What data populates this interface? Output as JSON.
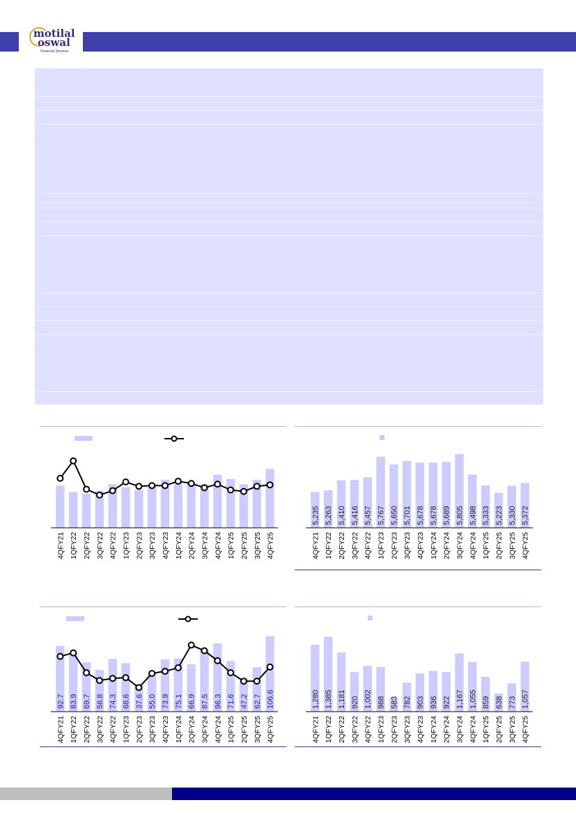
{
  "header": {
    "logo_text": [
      "motilal",
      "oswal"
    ],
    "logo_sub": "Financial Services"
  },
  "colors": {
    "bar": "#ccccff",
    "line": "#000000",
    "label": "#1a1aa6",
    "header": "#3f3fae",
    "footer": "#00008b"
  },
  "chart_data": [
    {
      "type": "bar+line",
      "categories": [
        "4QFY21",
        "1QFY22",
        "2QFY22",
        "3QFY22",
        "4QFY22",
        "1QFY23",
        "2QFY23",
        "3QFY23",
        "4QFY23",
        "1QFY24",
        "2QFY24",
        "3QFY24",
        "4QFY24",
        "1QFY25",
        "2QFY25",
        "3QFY25",
        "4QFY25"
      ],
      "bars": [
        58,
        49,
        47,
        51,
        60,
        56,
        52,
        57,
        66,
        64,
        62,
        60,
        73,
        67,
        60,
        66,
        81
      ],
      "line": [
        68,
        92,
        53,
        45,
        51,
        63,
        57,
        58,
        58,
        64,
        61,
        55,
        60,
        52,
        50,
        57,
        59
      ],
      "show_labels": false,
      "ymax": 110
    },
    {
      "type": "bar",
      "categories": [
        "4QFY21",
        "1QFY22",
        "2QFY22",
        "3QFY22",
        "4QFY22",
        "1QFY23",
        "2QFY23",
        "3QFY23",
        "4QFY23",
        "1QFY24",
        "2QFY24",
        "3QFY24",
        "4QFY24",
        "1QFY25",
        "2QFY25",
        "3QFY25",
        "4QFY25"
      ],
      "bars": [
        5235,
        5263,
        5410,
        5416,
        5457,
        5767,
        5650,
        5701,
        5678,
        5678,
        5689,
        5805,
        5498,
        5333,
        5223,
        5330,
        5372
      ],
      "labels": [
        "5,235",
        "5,263",
        "5,410",
        "5,416",
        "5,457",
        "5,767",
        "5,650",
        "5,701",
        "5,678",
        "5,678",
        "5,689",
        "5,805",
        "5,498",
        "5,333",
        "5,223",
        "5,330",
        "5,372"
      ],
      "show_labels": true,
      "ymin": 4700,
      "ymax": 5900
    },
    {
      "type": "bar+line",
      "categories": [
        "4QFY21",
        "1QFY22",
        "2QFY22",
        "3QFY22",
        "4QFY22",
        "1QFY23",
        "2QFY23",
        "3QFY23",
        "4QFY23",
        "1QFY24",
        "2QFY24",
        "3QFY24",
        "4QFY24",
        "1QFY25",
        "2QFY25",
        "3QFY25",
        "4QFY25"
      ],
      "bars": [
        92.7,
        83.9,
        69.7,
        58.8,
        74.3,
        68.6,
        37.6,
        55.0,
        73.9,
        75.1,
        66.9,
        87.5,
        96.3,
        71.6,
        47.2,
        62.7,
        106.6
      ],
      "labels": [
        "92.7",
        "83.9",
        "69.7",
        "58.8",
        "74.3",
        "68.6",
        "37.6",
        "55.0",
        "73.9",
        "75.1",
        "66.9",
        "87.5",
        "96.3",
        "71.6",
        "47.2",
        "62.7",
        "106.6"
      ],
      "line": [
        78,
        83,
        55,
        44,
        47,
        48,
        34,
        54,
        57,
        62,
        94,
        86,
        72,
        55,
        43,
        43,
        63
      ],
      "show_labels": true,
      "ymax": 118
    },
    {
      "type": "bar",
      "categories": [
        "4QFY21",
        "1QFY22",
        "2QFY22",
        "3QFY22",
        "4QFY22",
        "1QFY23",
        "2QFY23",
        "3QFY23",
        "4QFY23",
        "1QFY24",
        "2QFY24",
        "3QFY24",
        "4QFY24",
        "1QFY25",
        "2QFY25",
        "3QFY25",
        "4QFY25"
      ],
      "bars": [
        1280,
        1385,
        1181,
        920,
        1002,
        988,
        583,
        782,
        903,
        936,
        922,
        1167,
        1055,
        859,
        638,
        773,
        1057
      ],
      "labels": [
        "1,280",
        "1,385",
        "1,181",
        "920",
        "1,002",
        "988",
        "583",
        "782",
        "903",
        "936",
        "922",
        "1,167",
        "1,055",
        "859",
        "638",
        "773",
        "1,057"
      ],
      "show_labels": true,
      "ymin": 400,
      "ymax": 1500
    }
  ]
}
